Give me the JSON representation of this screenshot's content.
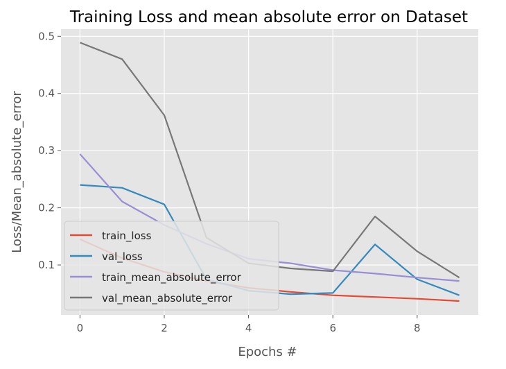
{
  "chart_data": {
    "type": "line",
    "title": "Training Loss and mean absolute error on Dataset",
    "xlabel": "Epochs #",
    "ylabel": "Loss/Mean_absolute_error",
    "xlim": [
      -0.45,
      9.45
    ],
    "ylim": [
      0.0127,
      0.5125
    ],
    "xticks": [
      0,
      2,
      4,
      6,
      8
    ],
    "yticks": [
      0.1,
      0.2,
      0.3,
      0.4,
      0.5
    ],
    "grid": true,
    "legend_position": "lower-left",
    "x": [
      0,
      1,
      2,
      3,
      4,
      5,
      6,
      7,
      8,
      9
    ],
    "series": [
      {
        "name": "train_loss",
        "color": "#E24A33",
        "values": [
          0.145,
          0.112,
          0.088,
          0.072,
          0.06,
          0.053,
          0.047,
          0.044,
          0.041,
          0.037
        ]
      },
      {
        "name": "val_loss",
        "color": "#348ABD",
        "values": [
          0.24,
          0.235,
          0.206,
          0.075,
          0.055,
          0.049,
          0.051,
          0.136,
          0.075,
          0.047
        ]
      },
      {
        "name": "train_mean_absolute_error",
        "color": "#988ED5",
        "values": [
          0.294,
          0.211,
          0.17,
          0.137,
          0.111,
          0.103,
          0.091,
          0.085,
          0.078,
          0.072
        ]
      },
      {
        "name": "val_mean_absolute_error",
        "color": "#777777",
        "values": [
          0.489,
          0.46,
          0.362,
          0.148,
          0.103,
          0.094,
          0.089,
          0.185,
          0.124,
          0.078
        ]
      }
    ]
  }
}
